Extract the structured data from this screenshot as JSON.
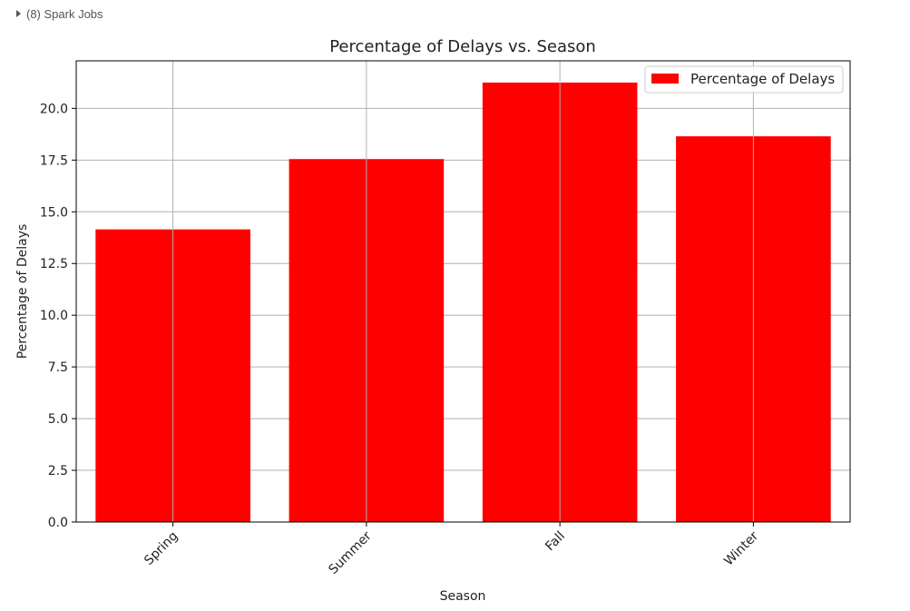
{
  "cell": {
    "jobs_label": "(8) Spark Jobs"
  },
  "colors": {
    "bar": "#ff0000",
    "grid": "#b0b0b0",
    "axis": "#000000"
  },
  "chart_data": {
    "type": "bar",
    "title": "Percentage of Delays vs. Season",
    "xlabel": "Season",
    "ylabel": "Percentage of Delays",
    "categories": [
      "Spring",
      "Summer",
      "Fall",
      "Winter"
    ],
    "series": [
      {
        "name": "Percentage of Delays",
        "values": [
          14.15,
          17.55,
          21.25,
          18.65
        ]
      }
    ],
    "ylim": [
      0,
      22.3
    ],
    "yticks": [
      "0.0",
      "2.5",
      "5.0",
      "7.5",
      "10.0",
      "12.5",
      "15.0",
      "17.5",
      "20.0"
    ],
    "grid": true,
    "legend_position": "top-right",
    "xtick_rotation": "45 degrees"
  }
}
